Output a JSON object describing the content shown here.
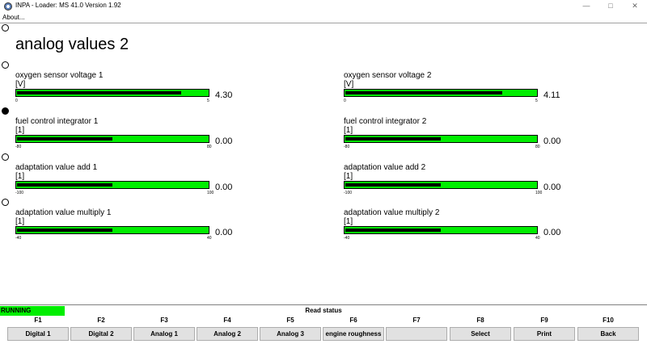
{
  "window": {
    "title": "INPA - Loader:  MS 41.0 Version 1.92",
    "minimize": "—",
    "maximize": "□",
    "close": "✕"
  },
  "menu": {
    "about": "About..."
  },
  "page": {
    "heading": "analog values 2"
  },
  "gauges": [
    {
      "label": "oxygen sensor voltage  1",
      "unit": "[V]",
      "value": "4.30",
      "min": "0",
      "max": "5",
      "fill": 0.86
    },
    {
      "label": "oxygen sensor voltage  2",
      "unit": "[V]",
      "value": "4.11",
      "min": "0",
      "max": "5",
      "fill": 0.82
    },
    {
      "label": "fuel control integrator 1",
      "unit": "[1]",
      "value": "0.00",
      "min": "-80",
      "max": "80",
      "fill": 0.5
    },
    {
      "label": "fuel control integrator 2",
      "unit": "[1]",
      "value": "0.00",
      "min": "-80",
      "max": "80",
      "fill": 0.5
    },
    {
      "label": "adaptation value add 1",
      "unit": "[1]",
      "value": "0.00",
      "min": "-100",
      "max": "100",
      "fill": 0.5
    },
    {
      "label": "adaptation value add 2",
      "unit": "[1]",
      "value": "0.00",
      "min": "-100",
      "max": "100",
      "fill": 0.5
    },
    {
      "label": "adaptation value multiply 1",
      "unit": "[1]",
      "value": "0.00",
      "min": "-40",
      "max": "40",
      "fill": 0.5
    },
    {
      "label": "adaptation value multiply 2",
      "unit": "[1]",
      "value": "0.00",
      "min": "-40",
      "max": "40",
      "fill": 0.5
    }
  ],
  "status": {
    "running": "RUNNING",
    "read_status": "Read status"
  },
  "fkeys": [
    {
      "key": "F1",
      "label": "Digital 1"
    },
    {
      "key": "F2",
      "label": "Digital 2"
    },
    {
      "key": "F3",
      "label": "Analog 1"
    },
    {
      "key": "F4",
      "label": "Analog 2"
    },
    {
      "key": "F5",
      "label": "Analog 3"
    },
    {
      "key": "F6",
      "label": "engine roughness"
    },
    {
      "key": "F7",
      "label": ""
    },
    {
      "key": "F8",
      "label": "Select"
    },
    {
      "key": "F9",
      "label": "Print"
    },
    {
      "key": "F10",
      "label": "Back"
    }
  ],
  "colors": {
    "bar_green": "#00ee00",
    "running_green": "#00ee00",
    "button_bg": "#e1e1e1"
  }
}
